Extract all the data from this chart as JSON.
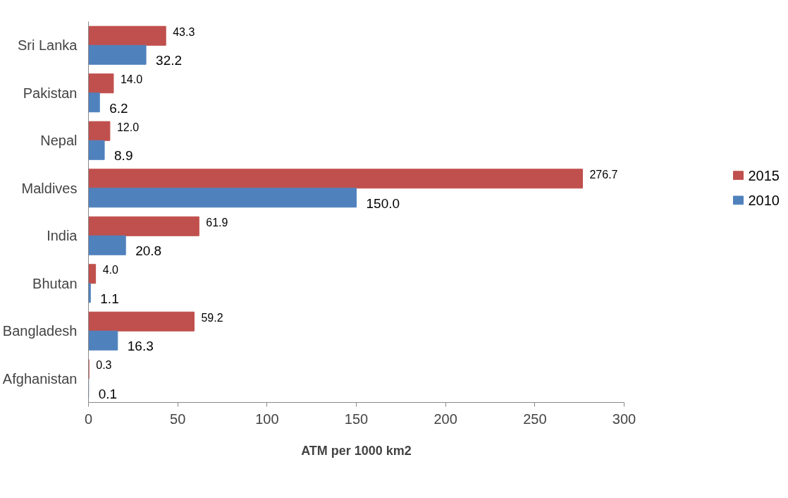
{
  "chart_data": {
    "type": "bar",
    "orientation": "horizontal",
    "xlabel": "ATM per 1000 km2",
    "categories": [
      "Sri Lanka",
      "Pakistan",
      "Nepal",
      "Maldives",
      "India",
      "Bhutan",
      "Bangladesh",
      "Afghanistan"
    ],
    "series": [
      {
        "name": "2015",
        "color": "#c0504d",
        "values": [
          43.3,
          14.0,
          12.0,
          276.7,
          61.9,
          4.0,
          59.2,
          0.3
        ],
        "value_labels": [
          "43.3",
          "14.0",
          "12.0",
          "276.7",
          "61.9",
          "4.0",
          "59.2",
          "0.3"
        ]
      },
      {
        "name": "2010",
        "color": "#4f81bd",
        "values": [
          32.2,
          6.2,
          8.9,
          150.0,
          20.8,
          1.1,
          16.3,
          0.1
        ],
        "value_labels": [
          "32.2",
          "6.2",
          "8.9",
          "150.0",
          "20.8",
          "1.1",
          "16.3",
          "0.1"
        ]
      }
    ],
    "xlim": [
      0,
      300
    ],
    "xticks": [
      0,
      50,
      100,
      150,
      200,
      250,
      300
    ],
    "grid": false,
    "legend": "right"
  }
}
